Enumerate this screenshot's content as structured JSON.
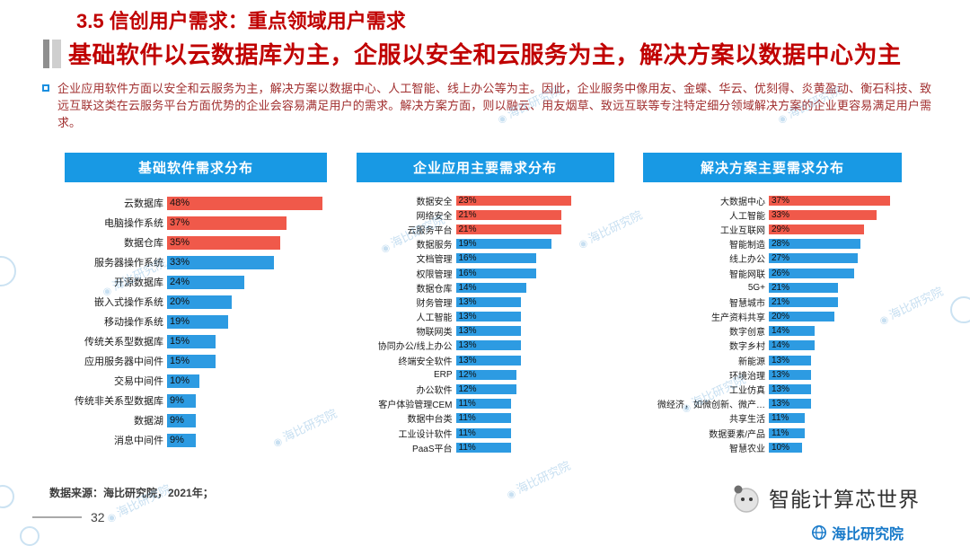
{
  "header": {
    "title": "3.5 信创用户需求：重点领域用户需求",
    "subtitle": "基础软件以云数据库为主，企服以安全和云服务为主，解决方案以数据中心为主"
  },
  "body": {
    "paragraph": "企业应用软件方面以安全和云服务为主，解决方案以数据中心、人工智能、线上办公等为主。因此，企业服务中像用友、金蝶、华云、优刻得、炎黄盈动、衡石科技、致远互联这类在云服务平台方面优势的企业会容易满足用户的需求。解决方案方面，则以融云、用友烟草、致远互联等专注特定细分领域解决方案的企业更容易满足用户需求。"
  },
  "chart_data": [
    {
      "type": "bar",
      "orientation": "horizontal",
      "title": "基础软件需求分布",
      "unit": "%",
      "xlim": [
        0,
        50
      ],
      "categories": [
        "云数据库",
        "电脑操作系统",
        "数据仓库",
        "服务器操作系统",
        "开源数据库",
        "嵌入式操作系统",
        "移动操作系统",
        "传统关系型数据库",
        "应用服务器中间件",
        "交易中间件",
        "传统非关系型数据库",
        "数据湖",
        "消息中间件"
      ],
      "values": [
        48,
        37,
        35,
        33,
        24,
        20,
        19,
        15,
        15,
        10,
        9,
        9,
        9
      ],
      "highlight_top_n": 3,
      "highlight_color": "#f0594a",
      "bar_color": "#2d9be2"
    },
    {
      "type": "bar",
      "orientation": "horizontal",
      "title": "企业应用主要需求分布",
      "unit": "%",
      "xlim": [
        0,
        25
      ],
      "categories": [
        "数据安全",
        "网络安全",
        "云服务平台",
        "数据服务",
        "文档管理",
        "权限管理",
        "数据仓库",
        "财务管理",
        "人工智能",
        "物联网类",
        "协同办公/线上办公",
        "终端安全软件",
        "ERP",
        "办公软件",
        "客户体验管理CEM",
        "数据中台类",
        "工业设计软件",
        "PaaS平台"
      ],
      "values": [
        23,
        21,
        21,
        19,
        16,
        16,
        14,
        13,
        13,
        13,
        13,
        13,
        12,
        12,
        11,
        11,
        11,
        11
      ],
      "highlight_top_n": 3,
      "highlight_color": "#f0594a",
      "bar_color": "#2d9be2"
    },
    {
      "type": "bar",
      "orientation": "horizontal",
      "title": "解决方案主要需求分布",
      "unit": "%",
      "xlim": [
        0,
        40
      ],
      "categories": [
        "大数据中心",
        "人工智能",
        "工业互联网",
        "智能制造",
        "线上办公",
        "智能网联",
        "5G+",
        "智慧城市",
        "生产资料共享",
        "数字创意",
        "数字乡村",
        "新能源",
        "环境治理",
        "工业仿真",
        "微经济，如微创新、微产…",
        "共享生活",
        "数据要素/产品",
        "智慧农业"
      ],
      "values": [
        37,
        33,
        29,
        28,
        27,
        26,
        21,
        21,
        20,
        14,
        14,
        13,
        13,
        13,
        13,
        11,
        11,
        10
      ],
      "highlight_top_n": 3,
      "highlight_color": "#f0594a",
      "bar_color": "#2d9be2"
    }
  ],
  "footer": {
    "source": "数据来源：海比研究院，2021年；",
    "page_number": "32",
    "brand_right": "智能计算芯世界",
    "brand_bottom": "海比研究院"
  },
  "watermark": {
    "text": "海比研究院"
  },
  "icons": {
    "watermark_circle": "◉"
  },
  "colors": {
    "title_red": "#c00000",
    "paragraph_red": "#a12f2f",
    "header_blue": "#1899e4",
    "bar_blue": "#2d9be2",
    "bar_red": "#f0594a"
  }
}
